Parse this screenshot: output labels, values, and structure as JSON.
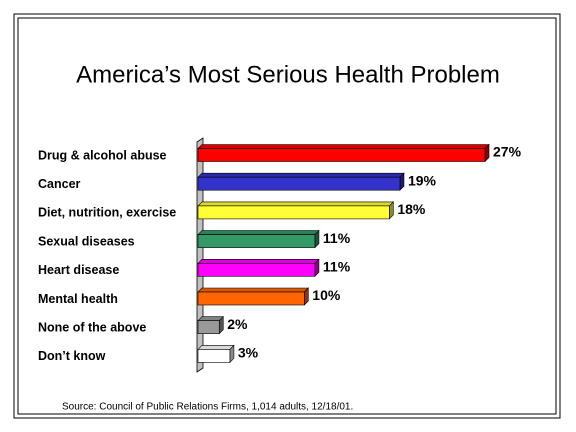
{
  "chart_data": {
    "type": "bar",
    "orientation": "horizontal",
    "title": "America’s Most Serious Health Problem",
    "categories": [
      "Drug & alcohol abuse",
      "Cancer",
      "Diet, nutrition, exercise",
      "Sexual diseases",
      "Heart disease",
      "Mental health",
      "None of the above",
      "Don’t know"
    ],
    "values": [
      27,
      19,
      18,
      11,
      11,
      10,
      2,
      3
    ],
    "value_labels": [
      "27%",
      "19%",
      "18%",
      "11%",
      "11%",
      "10%",
      "2%",
      "3%"
    ],
    "colors": [
      "#ff0000",
      "#3333cc",
      "#ffff33",
      "#339966",
      "#ff00ff",
      "#ff6600",
      "#999999",
      "#ffffff"
    ],
    "source": "Source: Council of Public Relations Firms, 1,014 adults, 12/18/01."
  }
}
